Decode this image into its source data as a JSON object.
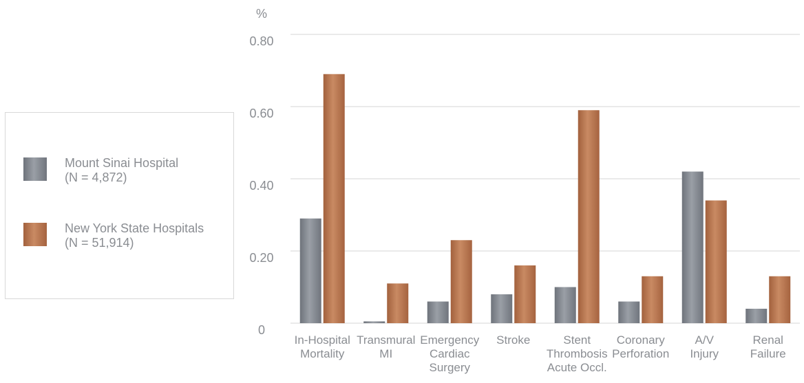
{
  "chart_data": {
    "type": "bar",
    "ylabel": "%",
    "ylim": [
      0,
      0.8
    ],
    "yticks": [
      "0",
      "0.20",
      "0.40",
      "0.60",
      "0.80"
    ],
    "ytick_values": [
      0,
      0.2,
      0.4,
      0.6,
      0.8
    ],
    "grid": true,
    "categories": [
      [
        "In-Hospital",
        "Mortality"
      ],
      [
        "Transmural",
        "MI"
      ],
      [
        "Emergency",
        "Cardiac",
        "Surgery"
      ],
      [
        "Stroke"
      ],
      [
        "Stent",
        "Thrombosis",
        "Acute Occl."
      ],
      [
        "Coronary",
        "Perforation"
      ],
      [
        "A/V",
        "Injury"
      ],
      [
        "Renal",
        "Failure"
      ]
    ],
    "series": [
      {
        "name": "Mount Sinai Hospital",
        "n_label": "(N = 4,872)",
        "color": "#858a92",
        "values": [
          0.29,
          0.005,
          0.06,
          0.08,
          0.1,
          0.06,
          0.42,
          0.04
        ]
      },
      {
        "name": "New York State Hospitals",
        "n_label": "(N = 51,914)",
        "color": "#b8764f",
        "values": [
          0.69,
          0.11,
          0.23,
          0.16,
          0.59,
          0.13,
          0.34,
          0.13
        ]
      }
    ],
    "legend_position": "left"
  }
}
